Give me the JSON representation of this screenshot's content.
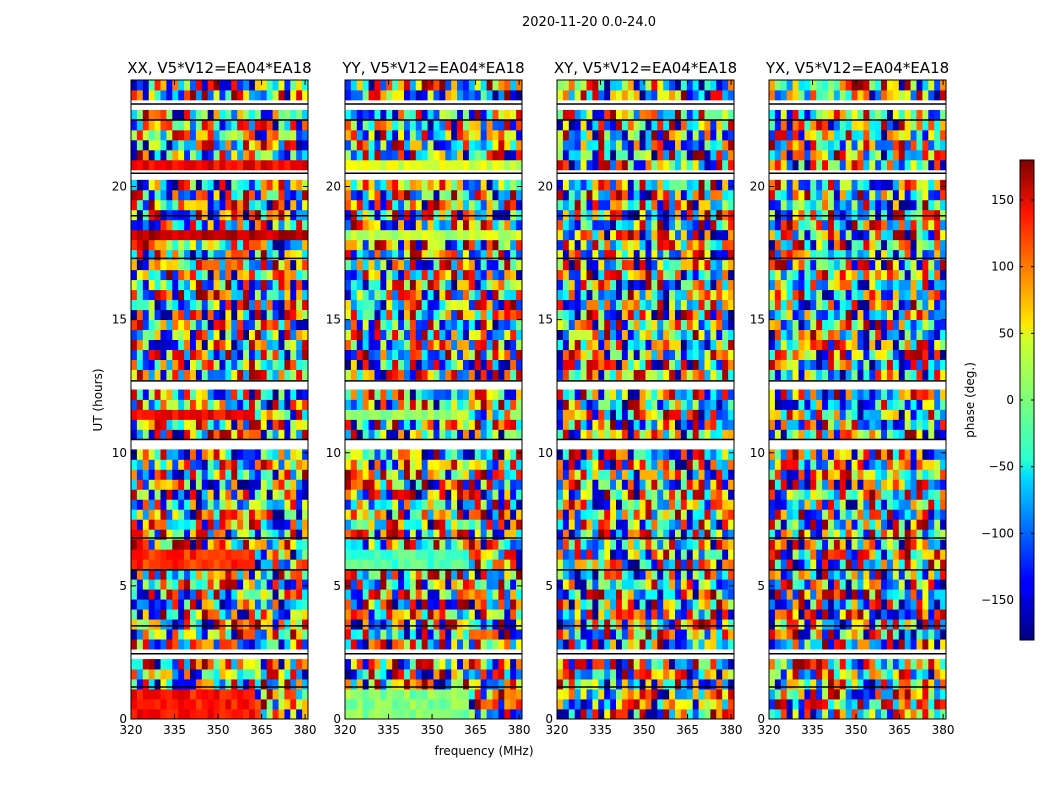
{
  "chart_data": {
    "type": "heatmap",
    "suptitle": "2020-11-20 0.0-24.0",
    "xlabel": "frequency (MHz)",
    "ylabel": "UT (hours)",
    "xlim": [
      320,
      381
    ],
    "ylim": [
      0,
      24
    ],
    "xticks": [
      320,
      335,
      350,
      365,
      380
    ],
    "yticks": [
      0,
      5,
      10,
      15,
      20
    ],
    "panels": [
      {
        "id": "xx",
        "title": "XX, V5*V12=EA04*EA18"
      },
      {
        "id": "yy",
        "title": "YY, V5*V12=EA04*EA18"
      },
      {
        "id": "xy",
        "title": "XY, V5*V12=EA04*EA18"
      },
      {
        "id": "yx",
        "title": "YX, V5*V12=EA04*EA18"
      }
    ],
    "colorbar": {
      "label": "phase (deg.)",
      "range": [
        -180,
        180
      ],
      "ticks": [
        150,
        100,
        50,
        0,
        -50,
        -100,
        -150
      ],
      "tick_labels": [
        "150",
        "100",
        "50",
        "0",
        "−50",
        "−100",
        "−150"
      ],
      "colormap": "jet"
    },
    "flagged_time_gaps_hours": [
      [
        1.0,
        1.2
      ],
      [
        2.2,
        2.45
      ],
      [
        3.4,
        3.5
      ],
      [
        5.5,
        5.6
      ],
      [
        6.6,
        6.8
      ],
      [
        10.3,
        10.5
      ],
      [
        12.5,
        12.7
      ],
      [
        17.1,
        17.3
      ],
      [
        18.6,
        18.9
      ],
      [
        20.3,
        20.5
      ],
      [
        22.4,
        22.5
      ],
      [
        23.0,
        23.1
      ]
    ],
    "coherent_phase_bands": [
      {
        "panel": "xx",
        "t": [
          0.0,
          1.0
        ],
        "f": [
          320,
          362
        ],
        "phase": 130
      },
      {
        "panel": "yy",
        "t": [
          0.0,
          1.0
        ],
        "f": [
          320,
          362
        ],
        "phase": 0
      },
      {
        "panel": "xx",
        "t": [
          5.7,
          6.5
        ],
        "f": [
          320,
          362
        ],
        "phase": 120
      },
      {
        "panel": "yy",
        "t": [
          5.7,
          6.5
        ],
        "f": [
          320,
          362
        ],
        "phase": -20
      },
      {
        "panel": "xx",
        "t": [
          11.1,
          11.5
        ],
        "f": [
          320,
          362
        ],
        "phase": 140
      },
      {
        "panel": "yy",
        "t": [
          11.1,
          11.5
        ],
        "f": [
          320,
          362
        ],
        "phase": 10
      },
      {
        "panel": "xx",
        "t": [
          18.0,
          18.4
        ],
        "f": [
          320,
          381
        ],
        "phase": 160
      },
      {
        "panel": "yy",
        "t": [
          18.0,
          18.4
        ],
        "f": [
          320,
          381
        ],
        "phase": 20
      },
      {
        "panel": "xx",
        "t": [
          20.6,
          20.9
        ],
        "f": [
          320,
          381
        ],
        "phase": 140
      },
      {
        "panel": "yy",
        "t": [
          20.6,
          20.9
        ],
        "f": [
          320,
          381
        ],
        "phase": 30
      }
    ]
  }
}
